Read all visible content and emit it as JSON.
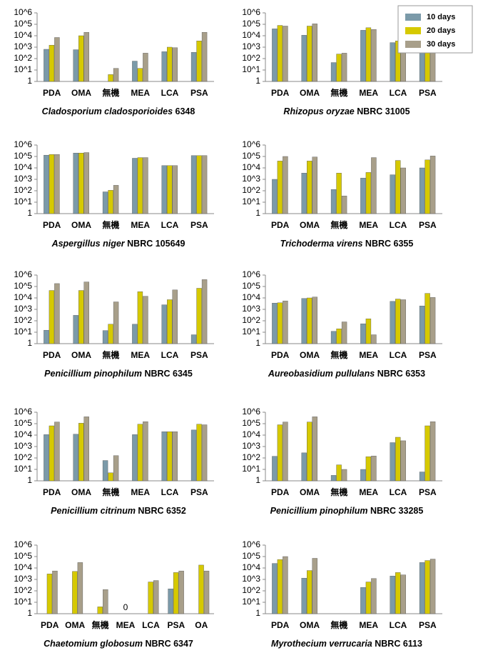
{
  "chart_data": [
    {
      "type": "bar",
      "species": "Cladosporium cladosporioides",
      "strain": " 6348",
      "log_scale": true,
      "ylim": [
        1,
        1000000
      ],
      "yticks": [
        1,
        {
          "value": 10,
          "label": "10^1"
        },
        {
          "value": 100,
          "label": "10^2"
        },
        {
          "value": 1000,
          "label": "10^3"
        },
        {
          "value": 10000,
          "label": "10^4"
        },
        {
          "value": 100000,
          "label": "10^5"
        },
        {
          "value": 1000000,
          "label": "10^6"
        }
      ],
      "categories": [
        "PDA",
        "OMA",
        "無機",
        "MEA",
        "LCA",
        "PSA"
      ],
      "series": [
        {
          "name": "10 days",
          "color": "#7b9aa9",
          "values": [
            650,
            600,
            null,
            60,
            400,
            350
          ]
        },
        {
          "name": "20 days",
          "color": "#d6c900",
          "values": [
            1500,
            10000,
            4,
            14,
            1000,
            3500
          ]
        },
        {
          "name": "30 days",
          "color": "#a89f8a",
          "values": [
            7000,
            20000,
            14,
            300,
            900,
            20000
          ]
        }
      ]
    },
    {
      "type": "bar",
      "species": "Rhizopus oryzae",
      "strain": " NBRC 31005",
      "log_scale": true,
      "ylim": [
        1,
        1000000
      ],
      "legend": true,
      "yticks": [
        1,
        {
          "value": 10,
          "label": "10^1"
        },
        {
          "value": 100,
          "label": "10^2"
        },
        {
          "value": 1000,
          "label": "10^3"
        },
        {
          "value": 10000,
          "label": "10^4"
        },
        {
          "value": 100000,
          "label": "10^5"
        },
        {
          "value": 1000000,
          "label": "10^6"
        }
      ],
      "categories": [
        "PDA",
        "OMA",
        "無機",
        "MEA",
        "LCA",
        "PSA"
      ],
      "series": [
        {
          "name": "10 days",
          "color": "#7b9aa9",
          "values": [
            40000,
            11000,
            45,
            30000,
            2500,
            45000
          ]
        },
        {
          "name": "20 days",
          "color": "#d6c900",
          "values": [
            80000,
            70000,
            250,
            50000,
            3500,
            80000
          ]
        },
        {
          "name": "30 days",
          "color": "#a89f8a",
          "values": [
            70000,
            110000,
            300,
            35000,
            6000,
            70000
          ]
        }
      ]
    },
    {
      "type": "bar",
      "species": "Aspergillus niger",
      "strain": " NBRC 105649",
      "log_scale": true,
      "ylim": [
        1,
        1000000
      ],
      "yticks": [
        1,
        {
          "value": 10,
          "label": "10^1"
        },
        {
          "value": 100,
          "label": "10^2"
        },
        {
          "value": 1000,
          "label": "10^3"
        },
        {
          "value": 10000,
          "label": "10^4"
        },
        {
          "value": 100000,
          "label": "10^5"
        },
        {
          "value": 1000000,
          "label": "10^6"
        }
      ],
      "categories": [
        "PDA",
        "OMA",
        "無機",
        "MEA",
        "LCA",
        "PSA"
      ],
      "series": [
        {
          "name": "10 days",
          "color": "#7b9aa9",
          "values": [
            130000,
            200000,
            80,
            70000,
            16000,
            120000
          ]
        },
        {
          "name": "20 days",
          "color": "#d6c900",
          "values": [
            150000,
            200000,
            110,
            80000,
            16000,
            120000
          ]
        },
        {
          "name": "30 days",
          "color": "#a89f8a",
          "values": [
            150000,
            220000,
            300,
            80000,
            16000,
            120000
          ]
        }
      ]
    },
    {
      "type": "bar",
      "species": "Trichoderma virens",
      "strain": " NBRC 6355",
      "log_scale": true,
      "ylim": [
        1,
        1000000
      ],
      "yticks": [
        1,
        {
          "value": 10,
          "label": "10^1"
        },
        {
          "value": 100,
          "label": "10^2"
        },
        {
          "value": 1000,
          "label": "10^3"
        },
        {
          "value": 10000,
          "label": "10^4"
        },
        {
          "value": 100000,
          "label": "10^5"
        },
        {
          "value": 1000000,
          "label": "10^6"
        }
      ],
      "categories": [
        "PDA",
        "OMA",
        "無機",
        "MEA",
        "LCA",
        "PSA"
      ],
      "series": [
        {
          "name": "10 days",
          "color": "#7b9aa9",
          "values": [
            1000,
            3500,
            130,
            1300,
            2500,
            10000
          ]
        },
        {
          "name": "20 days",
          "color": "#d6c900",
          "values": [
            40000,
            40000,
            3500,
            4000,
            45000,
            50000
          ]
        },
        {
          "name": "30 days",
          "color": "#a89f8a",
          "values": [
            100000,
            90000,
            35,
            80000,
            10000,
            110000
          ]
        }
      ]
    },
    {
      "type": "bar",
      "species": "Penicillium pinophilum",
      "strain": " NBRC 6345",
      "log_scale": true,
      "ylim": [
        1,
        1000000
      ],
      "yticks": [
        1,
        {
          "value": 10,
          "label": "10^1"
        },
        {
          "value": 100,
          "label": "10^2"
        },
        {
          "value": 1000,
          "label": "10^3"
        },
        {
          "value": 10000,
          "label": "10^4"
        },
        {
          "value": 100000,
          "label": "10^5"
        },
        {
          "value": 1000000,
          "label": "10^6"
        }
      ],
      "categories": [
        "PDA",
        "OMA",
        "無機",
        "MEA",
        "LCA",
        "PSA"
      ],
      "series": [
        {
          "name": "10 days",
          "color": "#7b9aa9",
          "values": [
            15,
            300,
            14,
            50,
            2500,
            6
          ]
        },
        {
          "name": "20 days",
          "color": "#d6c900",
          "values": [
            45000,
            45000,
            50,
            35000,
            7000,
            70000
          ]
        },
        {
          "name": "30 days",
          "color": "#a89f8a",
          "values": [
            180000,
            250000,
            4500,
            14000,
            50000,
            400000
          ]
        }
      ]
    },
    {
      "type": "bar",
      "species": "Aureobasidium pullulans",
      "strain": " NBRC 6353",
      "log_scale": true,
      "ylim": [
        1,
        1000000
      ],
      "yticks": [
        1,
        {
          "value": 10,
          "label": "10^1"
        },
        {
          "value": 100,
          "label": "10^2"
        },
        {
          "value": 1000,
          "label": "10^3"
        },
        {
          "value": 10000,
          "label": "10^4"
        },
        {
          "value": 100000,
          "label": "10^5"
        },
        {
          "value": 1000000,
          "label": "10^6"
        }
      ],
      "categories": [
        "PDA",
        "OMA",
        "無機",
        "MEA",
        "LCA",
        "PSA"
      ],
      "series": [
        {
          "name": "10 days",
          "color": "#7b9aa9",
          "values": [
            3500,
            9000,
            12,
            55,
            5000,
            2000
          ]
        },
        {
          "name": "20 days",
          "color": "#d6c900",
          "values": [
            3800,
            10000,
            20,
            150,
            8000,
            25000
          ]
        },
        {
          "name": "30 days",
          "color": "#a89f8a",
          "values": [
            5500,
            12000,
            80,
            6,
            7000,
            11000
          ]
        }
      ]
    },
    {
      "type": "bar",
      "species": "Penicillium citrinum",
      "strain": " NBRC 6352",
      "log_scale": true,
      "ylim": [
        1,
        1000000
      ],
      "yticks": [
        1,
        {
          "value": 10,
          "label": "10^1"
        },
        {
          "value": 100,
          "label": "10^2"
        },
        {
          "value": 1000,
          "label": "10^3"
        },
        {
          "value": 10000,
          "label": "10^4"
        },
        {
          "value": 100000,
          "label": "10^5"
        },
        {
          "value": 1000000,
          "label": "10^6"
        }
      ],
      "categories": [
        "PDA",
        "OMA",
        "無機",
        "MEA",
        "LCA",
        "PSA"
      ],
      "series": [
        {
          "name": "10 days",
          "color": "#7b9aa9",
          "values": [
            11000,
            12000,
            60,
            11000,
            20000,
            28000
          ]
        },
        {
          "name": "20 days",
          "color": "#d6c900",
          "values": [
            65000,
            110000,
            5,
            90000,
            20000,
            90000
          ]
        },
        {
          "name": "30 days",
          "color": "#a89f8a",
          "values": [
            140000,
            400000,
            160,
            150000,
            20000,
            80000
          ]
        }
      ]
    },
    {
      "type": "bar",
      "species": "Penicillium pinophilum",
      "strain": " NBRC 33285",
      "log_scale": true,
      "ylim": [
        1,
        1000000
      ],
      "yticks": [
        1,
        {
          "value": 10,
          "label": "10^1"
        },
        {
          "value": 100,
          "label": "10^2"
        },
        {
          "value": 1000,
          "label": "10^3"
        },
        {
          "value": 10000,
          "label": "10^4"
        },
        {
          "value": 100000,
          "label": "10^5"
        },
        {
          "value": 1000000,
          "label": "10^6"
        }
      ],
      "categories": [
        "PDA",
        "OMA",
        "無機",
        "MEA",
        "LCA",
        "PSA"
      ],
      "series": [
        {
          "name": "10 days",
          "color": "#7b9aa9",
          "values": [
            140,
            280,
            3,
            10,
            2200,
            6
          ]
        },
        {
          "name": "20 days",
          "color": "#d6c900",
          "values": [
            80000,
            140000,
            25,
            130,
            6500,
            65000
          ]
        },
        {
          "name": "30 days",
          "color": "#a89f8a",
          "values": [
            140000,
            400000,
            10,
            150,
            3200,
            150000
          ]
        }
      ]
    },
    {
      "type": "bar",
      "species": "Chaetomium globosum",
      "strain": " NBRC 6347",
      "log_scale": true,
      "ylim": [
        1,
        1000000
      ],
      "yticks": [
        1,
        {
          "value": 10,
          "label": "10^1"
        },
        {
          "value": 100,
          "label": "10^2"
        },
        {
          "value": 1000,
          "label": "10^3"
        },
        {
          "value": 10000,
          "label": "10^4"
        },
        {
          "value": 100000,
          "label": "10^5"
        },
        {
          "value": 1000000,
          "label": "10^6"
        }
      ],
      "categories": [
        "PDA",
        "OMA",
        "無機",
        "MEA",
        "LCA",
        "PSA",
        "OA"
      ],
      "series": [
        {
          "name": "10 days",
          "color": "#7b9aa9",
          "values": [
            null,
            null,
            null,
            null,
            null,
            150,
            null
          ]
        },
        {
          "name": "20 days",
          "color": "#d6c900",
          "values": [
            3000,
            5000,
            4,
            0,
            600,
            4000,
            18000
          ],
          "value_labels": [
            null,
            null,
            null,
            "0",
            null,
            null,
            null
          ]
        },
        {
          "name": "30 days",
          "color": "#a89f8a",
          "values": [
            5500,
            30000,
            130,
            null,
            800,
            5500,
            5500
          ]
        }
      ]
    },
    {
      "type": "bar",
      "species": "Myrothecium verrucaria",
      "strain": " NBRC 6113",
      "log_scale": true,
      "ylim": [
        1,
        1000000
      ],
      "yticks": [
        1,
        {
          "value": 10,
          "label": "10^1"
        },
        {
          "value": 100,
          "label": "10^2"
        },
        {
          "value": 1000,
          "label": "10^3"
        },
        {
          "value": 10000,
          "label": "10^4"
        },
        {
          "value": 100000,
          "label": "10^5"
        },
        {
          "value": 1000000,
          "label": "10^6"
        }
      ],
      "categories": [
        "PDA",
        "OMA",
        "無機",
        "MEA",
        "LCA",
        "PSA"
      ],
      "series": [
        {
          "name": "10 days",
          "color": "#7b9aa9",
          "values": [
            25000,
            1300,
            null,
            200,
            2000,
            30000
          ]
        },
        {
          "name": "20 days",
          "color": "#d6c900",
          "values": [
            55000,
            6000,
            null,
            600,
            4000,
            45000
          ]
        },
        {
          "name": "30 days",
          "color": "#a89f8a",
          "values": [
            100000,
            70000,
            null,
            1200,
            2500,
            60000
          ]
        }
      ]
    }
  ]
}
